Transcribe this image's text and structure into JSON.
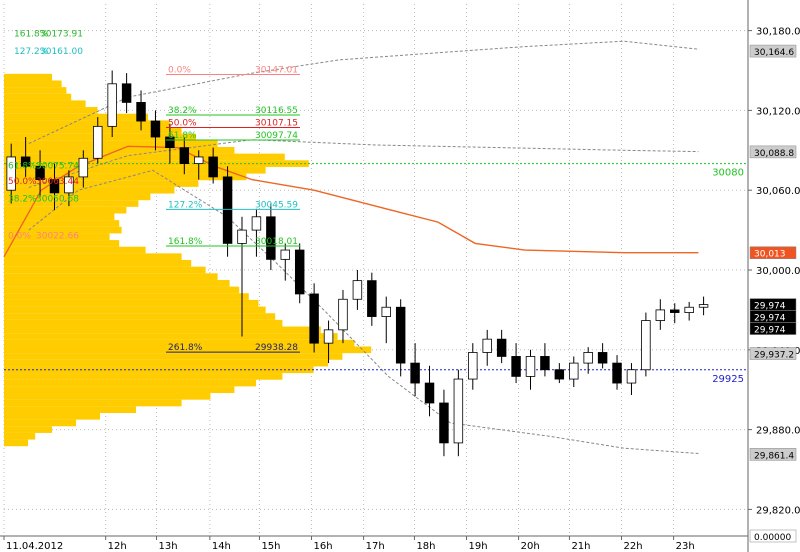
{
  "chart_data": {
    "type": "candlestick",
    "ylim": [
      29800,
      30200
    ],
    "y_ticks": [
      {
        "value": 29820,
        "label": "29,820.0"
      },
      {
        "value": 29880,
        "label": "29,880.0"
      },
      {
        "value": 29940,
        "label": "29,940.0"
      },
      {
        "value": 30000,
        "label": "30,000.0"
      },
      {
        "value": 30060,
        "label": "30,060.0"
      },
      {
        "value": 30120,
        "label": "30,120.0"
      },
      {
        "value": 30180,
        "label": "30,180.0"
      }
    ],
    "x_ticks": [
      {
        "t": 0,
        "label": "11.04.2012"
      },
      {
        "t": 8.2,
        "label": "12h"
      },
      {
        "t": 12.3,
        "label": "13h"
      },
      {
        "t": 16.6,
        "label": "14h"
      },
      {
        "t": 20.6,
        "label": "15h"
      },
      {
        "t": 24.8,
        "label": "16h"
      },
      {
        "t": 29.0,
        "label": "17h"
      },
      {
        "t": 33.1,
        "label": "18h"
      },
      {
        "t": 37.3,
        "label": "19h"
      },
      {
        "t": 41.5,
        "label": "20h"
      },
      {
        "t": 45.6,
        "label": "21h"
      },
      {
        "t": 49.8,
        "label": "22h"
      },
      {
        "t": 54.0,
        "label": "23h"
      }
    ],
    "price_labels": [
      {
        "value": 30164.6,
        "label": "30,164.6",
        "style": "gray"
      },
      {
        "value": 30088.8,
        "label": "30,088.8",
        "style": "gray"
      },
      {
        "value": 30013,
        "label": "30,013",
        "style": "orange"
      },
      {
        "value": 29974,
        "label": "29,974",
        "style": "black"
      },
      {
        "value": 29974,
        "label": "29,974",
        "style": "black"
      },
      {
        "value": 29974,
        "label": "29,974",
        "style": "black"
      },
      {
        "value": 29937.2,
        "label": "29,937.2",
        "style": "gray"
      },
      {
        "value": 29861.4,
        "label": "29,861.4",
        "style": "gray"
      },
      {
        "value": 29800,
        "label": "0.00000",
        "style": "white"
      }
    ],
    "level_lines": [
      {
        "value": 30080,
        "label": "30080",
        "color": "#22c322"
      },
      {
        "value": 29925,
        "label": "29925",
        "color": "#2222cc"
      }
    ],
    "top_left_text": [
      {
        "label": "161.8%",
        "color": "#2eb82e",
        "value": 30173.91
      },
      {
        "label": "30173.91",
        "color": "#2eb82e",
        "value": 30173.91
      },
      {
        "label": "127.2%",
        "color": "#20c0c0",
        "value": 30161.0
      },
      {
        "label": "30161.00",
        "color": "#20c0c0",
        "value": 30161.0
      }
    ],
    "fib_levels": [
      {
        "pct": "0.0%",
        "value": 30147.01,
        "label": "30147.01",
        "color": "#ff8080",
        "side": "upper"
      },
      {
        "pct": "38.2%",
        "value": 30116.55,
        "label": "30116.55",
        "color": "#22c322",
        "side": "upper"
      },
      {
        "pct": "50.0%",
        "value": 30107.15,
        "label": "30107.15",
        "color": "#dd2222",
        "side": "upper"
      },
      {
        "pct": "61.8%",
        "value": 30097.74,
        "label": "30097.74",
        "color": "#22c322",
        "side": "upper"
      },
      {
        "pct": "127.2%",
        "value": 30045.59,
        "label": "30045.59",
        "color": "#20c0c0",
        "side": "lower"
      },
      {
        "pct": "161.8%",
        "value": 30018.01,
        "label": "30018.01",
        "color": "#22c322",
        "side": "lower"
      },
      {
        "pct": "261.8%",
        "value": 29938.28,
        "label": "29938.28",
        "color": "#222266",
        "side": "lower"
      }
    ],
    "left_fib_labels": [
      {
        "value": 30075,
        "color": "#22c322",
        "label": "61.8%"
      },
      {
        "value": 30075,
        "color": "#22c322",
        "label": "30075.74"
      },
      {
        "value": 30063,
        "color": "#dd2222",
        "label": "50.0%"
      },
      {
        "value": 30063,
        "color": "#dd2222",
        "label": "30063.44"
      },
      {
        "value": 30050,
        "color": "#22c322",
        "label": "38.2%"
      },
      {
        "value": 30050,
        "color": "#22c322",
        "label": "30050.68"
      },
      {
        "value": 30022,
        "color": "#ff8080",
        "label": "0.0%"
      },
      {
        "value": 30022,
        "color": "#ff8080",
        "label": "30022.66"
      }
    ],
    "upper_band": [
      [
        2,
        30095
      ],
      [
        10,
        30130
      ],
      [
        20,
        30148
      ],
      [
        27,
        30158
      ],
      [
        33,
        30162
      ],
      [
        42,
        30168
      ],
      [
        50,
        30172
      ],
      [
        56,
        30166
      ]
    ],
    "mid_band": [
      [
        2,
        30062
      ],
      [
        10,
        30086
      ],
      [
        20,
        30098
      ],
      [
        30,
        30094
      ],
      [
        40,
        30092
      ],
      [
        50,
        30090
      ],
      [
        56,
        30089
      ]
    ],
    "lower_band": [
      [
        2,
        30030
      ],
      [
        6,
        30060
      ],
      [
        12,
        30075
      ],
      [
        18,
        30040
      ],
      [
        22,
        30005
      ],
      [
        26,
        29968
      ],
      [
        31,
        29920
      ],
      [
        36,
        29885
      ],
      [
        44,
        29875
      ],
      [
        50,
        29866
      ],
      [
        56,
        29862
      ]
    ],
    "vwap": [
      [
        0,
        30010
      ],
      [
        3,
        30060
      ],
      [
        6,
        30078
      ],
      [
        10,
        30093
      ],
      [
        14,
        30092
      ],
      [
        17,
        30078
      ],
      [
        20,
        30068
      ],
      [
        25,
        30060
      ],
      [
        30,
        30048
      ],
      [
        35,
        30036
      ],
      [
        38,
        30020
      ],
      [
        42,
        30015
      ],
      [
        50,
        30013
      ],
      [
        56,
        30013
      ]
    ],
    "volume_profile": [
      [
        30145,
        40
      ],
      [
        30140,
        48
      ],
      [
        30135,
        52
      ],
      [
        30130,
        56
      ],
      [
        30125,
        68
      ],
      [
        30120,
        78
      ],
      [
        30115,
        120
      ],
      [
        30110,
        138
      ],
      [
        30105,
        148
      ],
      [
        30100,
        160
      ],
      [
        30095,
        178
      ],
      [
        30090,
        192
      ],
      [
        30085,
        234
      ],
      [
        30080,
        254
      ],
      [
        30075,
        218
      ],
      [
        30070,
        202
      ],
      [
        30065,
        162
      ],
      [
        30060,
        142
      ],
      [
        30055,
        122
      ],
      [
        30050,
        112
      ],
      [
        30045,
        102
      ],
      [
        30040,
        92
      ],
      [
        30035,
        96
      ],
      [
        30030,
        98
      ],
      [
        30025,
        88
      ],
      [
        30020,
        96
      ],
      [
        30015,
        118
      ],
      [
        30010,
        148
      ],
      [
        30005,
        156
      ],
      [
        30000,
        168
      ],
      [
        29995,
        178
      ],
      [
        29990,
        188
      ],
      [
        29985,
        196
      ],
      [
        29980,
        204
      ],
      [
        29975,
        212
      ],
      [
        29970,
        218
      ],
      [
        29965,
        226
      ],
      [
        29960,
        232
      ],
      [
        29955,
        264
      ],
      [
        29950,
        278
      ],
      [
        29945,
        292
      ],
      [
        29940,
        306
      ],
      [
        29935,
        282
      ],
      [
        29930,
        270
      ],
      [
        29925,
        258
      ],
      [
        29920,
        232
      ],
      [
        29915,
        210
      ],
      [
        29910,
        192
      ],
      [
        29905,
        172
      ],
      [
        29900,
        148
      ],
      [
        29895,
        110
      ],
      [
        29890,
        80
      ],
      [
        29885,
        60
      ],
      [
        29880,
        40
      ],
      [
        29875,
        26
      ],
      [
        29870,
        20
      ]
    ],
    "candles": [
      [
        30060,
        30095,
        30050,
        30085
      ],
      [
        30085,
        30100,
        30070,
        30078
      ],
      [
        30078,
        30090,
        30055,
        30068
      ],
      [
        30068,
        30080,
        30045,
        30058
      ],
      [
        30058,
        30075,
        30048,
        30070
      ],
      [
        30070,
        30090,
        30062,
        30084
      ],
      [
        30084,
        30115,
        30080,
        30108
      ],
      [
        30108,
        30150,
        30100,
        30140
      ],
      [
        30140,
        30148,
        30118,
        30126
      ],
      [
        30126,
        30135,
        30105,
        30112
      ],
      [
        30112,
        30120,
        30090,
        30100
      ],
      [
        30100,
        30110,
        30080,
        30092
      ],
      [
        30092,
        30100,
        30072,
        30080
      ],
      [
        30080,
        30090,
        30068,
        30085
      ],
      [
        30085,
        30092,
        30065,
        30070
      ],
      [
        30070,
        30078,
        30010,
        30020
      ],
      [
        30020,
        30040,
        29950,
        30030
      ],
      [
        30030,
        30046,
        30010,
        30040
      ],
      [
        30040,
        30050,
        30000,
        30008
      ],
      [
        30008,
        30020,
        29992,
        30015
      ],
      [
        30015,
        30020,
        29975,
        29982
      ],
      [
        29982,
        29990,
        29938,
        29945
      ],
      [
        29945,
        29962,
        29930,
        29955
      ],
      [
        29955,
        29985,
        29945,
        29978
      ],
      [
        29978,
        30000,
        29970,
        29992
      ],
      [
        29992,
        29998,
        29958,
        29965
      ],
      [
        29965,
        29980,
        29945,
        29972
      ],
      [
        29972,
        29978,
        29920,
        29930
      ],
      [
        29930,
        29945,
        29905,
        29915
      ],
      [
        29915,
        29928,
        29890,
        29900
      ],
      [
        29900,
        29910,
        29860,
        29870
      ],
      [
        29870,
        29925,
        29860,
        29918
      ],
      [
        29918,
        29945,
        29910,
        29938
      ],
      [
        29938,
        29955,
        29928,
        29948
      ],
      [
        29948,
        29955,
        29930,
        29935
      ],
      [
        29935,
        29945,
        29915,
        29920
      ],
      [
        29920,
        29940,
        29910,
        29935
      ],
      [
        29935,
        29945,
        29920,
        29925
      ],
      [
        29925,
        29930,
        29915,
        29918
      ],
      [
        29918,
        29935,
        29912,
        29930
      ],
      [
        29930,
        29942,
        29922,
        29938
      ],
      [
        29938,
        29945,
        29926,
        29930
      ],
      [
        29930,
        29936,
        29910,
        29915
      ],
      [
        29915,
        29930,
        29906,
        29925
      ],
      [
        29925,
        29968,
        29920,
        29962
      ],
      [
        29962,
        29978,
        29955,
        29970
      ],
      [
        29970,
        29975,
        29960,
        29968
      ],
      [
        29968,
        29976,
        29962,
        29972
      ],
      [
        29972,
        29980,
        29966,
        29974
      ]
    ]
  }
}
